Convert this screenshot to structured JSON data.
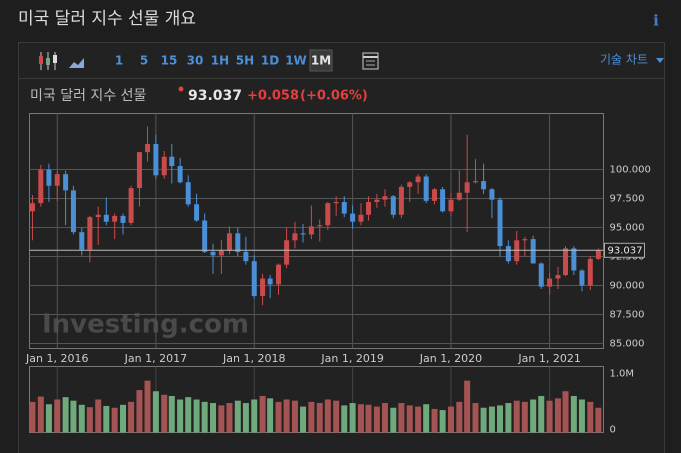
{
  "header": {
    "title": "미국 달러 지수 선물 개요",
    "info": "ℹ"
  },
  "toolbar": {
    "intervals": [
      "1",
      "5",
      "15",
      "30",
      "1H",
      "5H",
      "1D",
      "1W",
      "1M"
    ],
    "active": "1M",
    "menu": "기술 차트"
  },
  "quote": {
    "name": "미국 달러 지수 선물",
    "price": "93.037",
    "change": "+0.058",
    "change_pct": "(+0.06%)"
  },
  "watermark": "Investing.com",
  "chart_data": {
    "type": "candlestick",
    "x": [
      "2015-10-01",
      "2015-11-01",
      "2015-12-01",
      "2016-01-01",
      "2016-02-01",
      "2016-03-01",
      "2016-04-01",
      "2016-05-01",
      "2016-06-01",
      "2016-07-01",
      "2016-08-01",
      "2016-09-01",
      "2016-10-01",
      "2016-11-01",
      "2016-12-01",
      "2017-01-01",
      "2017-02-01",
      "2017-03-01",
      "2017-04-01",
      "2017-05-01",
      "2017-06-01",
      "2017-07-01",
      "2017-08-01",
      "2017-09-01",
      "2017-10-01",
      "2017-11-01",
      "2017-12-01",
      "2018-01-01",
      "2018-02-01",
      "2018-03-01",
      "2018-04-01",
      "2018-05-01",
      "2018-06-01",
      "2018-07-01",
      "2018-08-01",
      "2018-09-01",
      "2018-10-01",
      "2018-11-01",
      "2018-12-01",
      "2019-01-01",
      "2019-02-01",
      "2019-03-01",
      "2019-04-01",
      "2019-05-01",
      "2019-06-01",
      "2019-07-01",
      "2019-08-01",
      "2019-09-01",
      "2019-10-01",
      "2019-11-01",
      "2019-12-01",
      "2020-01-01",
      "2020-02-01",
      "2020-03-01",
      "2020-04-01",
      "2020-05-01",
      "2020-06-01",
      "2020-07-01",
      "2020-08-01",
      "2020-09-01",
      "2020-10-01",
      "2020-11-01",
      "2020-12-01",
      "2021-01-01",
      "2021-02-01",
      "2021-03-01",
      "2021-04-01",
      "2021-05-01",
      "2021-06-01",
      "2021-07-01"
    ],
    "open": [
      96.4,
      97.1,
      100.0,
      98.6,
      99.6,
      98.2,
      94.6,
      93.1,
      95.9,
      96.1,
      95.5,
      96.0,
      95.4,
      98.4,
      101.5,
      102.2,
      99.5,
      101.1,
      100.3,
      98.9,
      97.0,
      95.6,
      92.9,
      92.6,
      93.0,
      94.5,
      92.9,
      92.1,
      89.1,
      90.6,
      90.1,
      91.8,
      93.9,
      94.5,
      94.4,
      95.1,
      95.2,
      97.1,
      97.2,
      96.2,
      95.5,
      96.1,
      97.2,
      97.4,
      97.7,
      96.1,
      98.5,
      98.9,
      99.4,
      97.3,
      98.3,
      96.4,
      97.4,
      98.0,
      98.9,
      99.0,
      98.3,
      97.4,
      93.4,
      92.1,
      93.9,
      94.0,
      91.9,
      89.9,
      90.6,
      90.9,
      93.2,
      91.3,
      90.0,
      92.3
    ],
    "high": [
      97.8,
      100.4,
      100.5,
      99.9,
      99.9,
      98.6,
      95.0,
      96.0,
      96.8,
      97.6,
      96.2,
      96.2,
      98.6,
      101.5,
      103.7,
      103.0,
      101.6,
      102.2,
      101.0,
      99.5,
      97.9,
      96.2,
      93.6,
      93.9,
      95.1,
      95.0,
      94.2,
      92.6,
      91.0,
      90.9,
      91.9,
      95.0,
      95.5,
      95.3,
      96.9,
      95.7,
      97.2,
      97.7,
      97.7,
      96.9,
      97.1,
      97.7,
      97.9,
      98.3,
      97.8,
      98.7,
      99.0,
      99.6,
      99.6,
      98.4,
      98.5,
      98.0,
      99.9,
      103.0,
      100.9,
      100.5,
      98.4,
      97.6,
      93.9,
      94.7,
      94.2,
      94.3,
      92.0,
      91.1,
      91.6,
      93.4,
      93.4,
      91.4,
      92.5,
      93.2
    ],
    "low": [
      93.9,
      96.8,
      97.2,
      97.3,
      95.2,
      94.4,
      92.6,
      92.0,
      93.5,
      95.2,
      94.0,
      94.4,
      95.2,
      96.8,
      100.7,
      99.2,
      99.2,
      98.8,
      98.8,
      96.8,
      95.5,
      92.8,
      91.0,
      91.0,
      92.7,
      92.5,
      91.8,
      88.9,
      88.3,
      88.9,
      89.2,
      91.5,
      93.2,
      93.7,
      94.0,
      93.8,
      94.8,
      96.0,
      95.9,
      94.9,
      95.2,
      95.6,
      96.7,
      96.8,
      95.8,
      95.8,
      97.2,
      97.9,
      97.1,
      97.0,
      96.3,
      96.0,
      97.3,
      94.6,
      98.8,
      97.9,
      95.8,
      92.5,
      91.9,
      91.8,
      92.5,
      91.9,
      89.7,
      89.2,
      89.7,
      90.8,
      90.9,
      89.5,
      89.6,
      92.2
    ],
    "close": [
      97.1,
      100.0,
      98.6,
      99.6,
      98.2,
      94.6,
      93.1,
      95.9,
      96.1,
      95.5,
      96.0,
      95.4,
      98.4,
      101.5,
      102.2,
      99.5,
      101.1,
      100.3,
      98.9,
      97.0,
      95.6,
      92.9,
      92.6,
      93.0,
      94.5,
      92.9,
      92.1,
      89.1,
      90.6,
      90.1,
      91.8,
      93.9,
      94.5,
      94.4,
      95.1,
      95.2,
      97.1,
      97.2,
      96.2,
      95.5,
      96.1,
      97.2,
      97.4,
      97.7,
      96.1,
      98.5,
      98.9,
      99.4,
      97.3,
      98.3,
      96.4,
      97.4,
      98.0,
      98.9,
      99.0,
      98.3,
      97.4,
      93.4,
      92.1,
      93.9,
      94.0,
      91.9,
      89.9,
      90.6,
      90.9,
      93.2,
      91.3,
      90.0,
      92.3,
      93.037
    ],
    "up_color": "#c94b4b",
    "down_color": "#4b8fd6",
    "xlim": [
      "2015-09-20",
      "2021-07-20"
    ],
    "xticks": [
      {
        "value": "2016-01-01",
        "label": "Jan 1, 2016"
      },
      {
        "value": "2017-01-01",
        "label": "Jan 1, 2017"
      },
      {
        "value": "2018-01-01",
        "label": "Jan 1, 2018"
      },
      {
        "value": "2019-01-01",
        "label": "Jan 1, 2019"
      },
      {
        "value": "2020-01-01",
        "label": "Jan 1, 2020"
      },
      {
        "value": "2021-01-01",
        "label": "Jan 1, 2021"
      }
    ],
    "ylim": [
      84.57,
      104.83
    ],
    "yticks": [
      {
        "value": 85,
        "label": "85.000"
      },
      {
        "value": 87.5,
        "label": "87.500"
      },
      {
        "value": 90,
        "label": "90.000"
      },
      {
        "value": 92.5,
        "label": "92.500"
      },
      {
        "value": 95,
        "label": "95.000"
      },
      {
        "value": 97.5,
        "label": "97.500"
      },
      {
        "value": 100,
        "label": "100.000"
      }
    ],
    "grid": true,
    "volume": {
      "values": [
        520000,
        610000,
        480000,
        560000,
        600000,
        540000,
        470000,
        430000,
        560000,
        450000,
        420000,
        470000,
        520000,
        720000,
        880000,
        700000,
        640000,
        620000,
        560000,
        600000,
        560000,
        520000,
        500000,
        460000,
        500000,
        540000,
        500000,
        560000,
        620000,
        580000,
        520000,
        560000,
        540000,
        440000,
        520000,
        500000,
        560000,
        540000,
        460000,
        500000,
        480000,
        470000,
        440000,
        500000,
        420000,
        500000,
        460000,
        440000,
        480000,
        400000,
        380000,
        440000,
        520000,
        880000,
        500000,
        420000,
        440000,
        460000,
        500000,
        540000,
        520000,
        560000,
        620000,
        540000,
        580000,
        700000,
        620000,
        560000,
        520000,
        420000
      ],
      "up_color": "#a65353",
      "down_color": "#6fa97c",
      "ylim": [
        0,
        1120000
      ],
      "yticks": [
        0,
        {
          "value": 1000000,
          "label": "1.0M"
        }
      ]
    }
  }
}
